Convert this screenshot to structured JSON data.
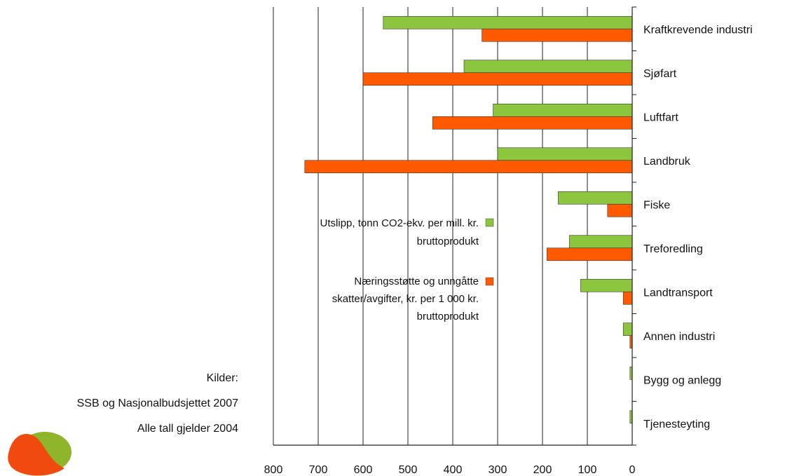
{
  "chart_data": {
    "type": "bar",
    "orientation": "horizontal",
    "x_reversed": true,
    "categories": [
      "Kraftkrevende industri",
      "Sjøfart",
      "Luftfart",
      "Landbruk",
      "Fiske",
      "Treforedling",
      "Landtransport",
      "Annen industri",
      "Bygg og anlegg",
      "Tjenesteyting"
    ],
    "series": [
      {
        "name": "Utslipp, tonn CO2-ekv. per mill. kr. bruttoprodukt",
        "color": "#8cc63f",
        "values": [
          555,
          375,
          310,
          300,
          165,
          140,
          115,
          20,
          5,
          5
        ]
      },
      {
        "name": "Næringsstøtte og unngåtte skatter/avgifter, kr. per 1 000 kr. bruttoprodukt",
        "color": "#ff5a00",
        "values": [
          335,
          600,
          445,
          730,
          55,
          190,
          20,
          5,
          0,
          0
        ]
      }
    ],
    "xlim": [
      0,
      800
    ],
    "xticks": [
      "0",
      "100",
      "200",
      "300",
      "400",
      "500",
      "600",
      "700",
      "800"
    ],
    "xtick_values": [
      0,
      100,
      200,
      300,
      400,
      500,
      600,
      700,
      800
    ],
    "grid": true,
    "legend_placement": "middle"
  },
  "legend": {
    "line1": [
      "Utslipp, tonn CO2-ekv. per mill. kr.",
      "bruttoprodukt"
    ],
    "line2": [
      "Næringsstøtte og unngåtte",
      "skatter/avgifter, kr. per 1 000 kr.",
      "bruttoprodukt"
    ]
  },
  "source": {
    "label": "Kilder:",
    "line1": "SSB og Nasjonalbudsjettet 2007",
    "line2": "Alle tall gjelder 2004"
  },
  "logo": {
    "colors": [
      "#8fb62a",
      "#f04a0f"
    ]
  }
}
